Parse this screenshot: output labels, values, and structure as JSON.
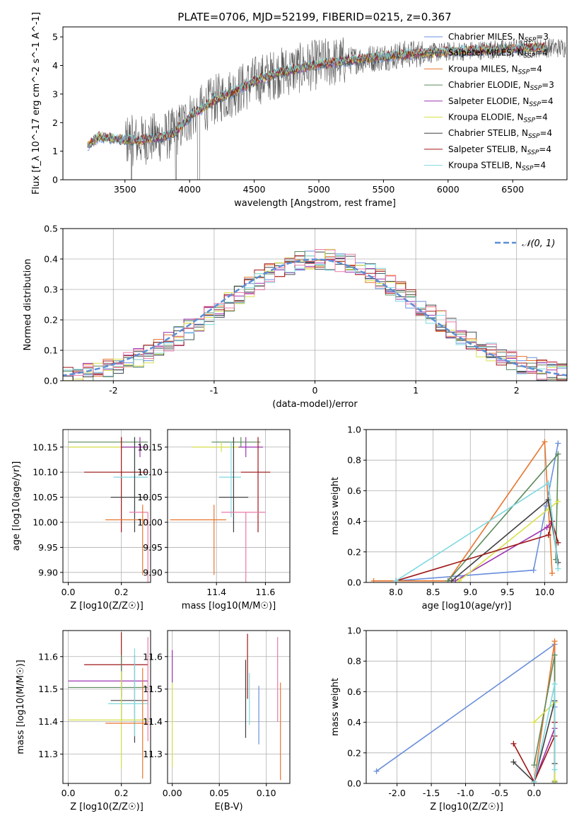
{
  "figure_title": "PLATE=0706, MJD=52199, FIBERID=0215, z=0.367",
  "colors": {
    "Chabrier MILES": "#6a8fdc",
    "Salpeter MILES": "#3f4f54",
    "Kroupa MILES": "#e8762e",
    "Chabrier ELODIE": "#5c8a5c",
    "Salpeter ELODIE": "#9b35b0",
    "Kroupa ELODIE": "#d7e04a",
    "Chabrier STELIB": "#404040",
    "Salpeter STELIB": "#a01818",
    "Kroupa STELIB": "#7fd9e0",
    "pink": "#e87aa8"
  },
  "legend_spectrum": [
    {
      "label": "Chabrier MILES, N",
      "sub": "SSP",
      "val": "=3",
      "color_key": "Chabrier MILES"
    },
    {
      "label": "Salpeter MILES, N",
      "sub": "SSP",
      "val": "=4",
      "color_key": "Salpeter MILES"
    },
    {
      "label": "Kroupa MILES, N",
      "sub": "SSP",
      "val": "=4",
      "color_key": "Kroupa MILES"
    },
    {
      "label": "Chabrier ELODIE, N",
      "sub": "SSP",
      "val": "=3",
      "color_key": "Chabrier ELODIE"
    },
    {
      "label": "Salpeter ELODIE, N",
      "sub": "SSP",
      "val": "=4",
      "color_key": "Salpeter ELODIE"
    },
    {
      "label": "Kroupa ELODIE, N",
      "sub": "SSP",
      "val": "=4",
      "color_key": "Kroupa ELODIE"
    },
    {
      "label": "Chabrier STELIB, N",
      "sub": "SSP",
      "val": "=4",
      "color_key": "Chabrier STELIB"
    },
    {
      "label": "Salpeter STELIB, N",
      "sub": "SSP",
      "val": "=4",
      "color_key": "Salpeter STELIB"
    },
    {
      "label": "Kroupa STELIB, N",
      "sub": "SSP",
      "val": "=4",
      "color_key": "Kroupa STELIB"
    }
  ],
  "legend_hist": "𝒩(0, 1)",
  "chart_data": [
    {
      "id": "spectrum",
      "type": "line",
      "xlabel": "wavelength [Angstrom, rest frame]",
      "ylabel": "Flux [f_λ 10^-17 erg cm^-2 s^-1 A^-1]",
      "xlim": [
        3020,
        6920
      ],
      "ylim": [
        0,
        5.35
      ],
      "xticks": [
        3500,
        4000,
        4500,
        5000,
        5500,
        6000,
        6500
      ],
      "yticks": [
        0,
        1,
        2,
        3,
        4,
        5
      ],
      "continuum": {
        "x": [
          3210,
          3300,
          3400,
          3500,
          3600,
          3700,
          3800,
          3900,
          4000,
          4100,
          4200,
          4300,
          4400,
          4500,
          4600,
          4700,
          4800,
          4900,
          5000,
          5100,
          5200,
          5300,
          5400,
          5500,
          5600,
          5700,
          5800,
          5900,
          6000,
          6100,
          6200,
          6300,
          6400,
          6500,
          6600,
          6700,
          6750
        ],
        "y": [
          1.2,
          1.5,
          1.45,
          1.4,
          1.35,
          1.45,
          1.5,
          1.7,
          2.2,
          2.5,
          2.8,
          3.0,
          3.2,
          3.45,
          3.6,
          3.75,
          3.85,
          3.95,
          4.05,
          4.1,
          4.15,
          4.2,
          4.25,
          4.3,
          4.35,
          4.4,
          4.42,
          4.45,
          4.48,
          4.5,
          4.52,
          4.55,
          4.56,
          4.58,
          4.6,
          4.62,
          4.62
        ]
      },
      "noise_series": "Chabrier STELIB"
    },
    {
      "id": "residuals",
      "type": "histogram",
      "xlabel": "(data-model)/error",
      "ylabel": "Normed distribution",
      "xlim": [
        -2.5,
        2.5
      ],
      "ylim": [
        0,
        0.5
      ],
      "xticks": [
        -2,
        -1,
        0,
        1,
        2
      ],
      "yticks": [
        0,
        0.1,
        0.2,
        0.3,
        0.4,
        0.5
      ],
      "bin_width": 0.1,
      "reference_curve": "gaussian"
    },
    {
      "id": "age_vs_Z",
      "type": "errorbar",
      "xlabel": "Z [log10(Z/Z☉)]",
      "ylabel": "age  [log10(age/yr)]",
      "xlim": [
        -0.02,
        0.31
      ],
      "ylim": [
        9.88,
        10.185
      ],
      "xticks": [
        0.0,
        0.2
      ],
      "yticks": [
        9.9,
        9.95,
        10.0,
        10.05,
        10.1,
        10.15
      ],
      "points": [
        {
          "series": "Chabrier ELODIE",
          "x": 0.2,
          "y": 10.16,
          "xerr": [
            0.2,
            0.1
          ],
          "yerr": [
            0.01,
            0.01
          ]
        },
        {
          "series": "Kroupa ELODIE",
          "x": 0.2,
          "y": 10.15,
          "xerr": [
            0.2,
            0.1
          ],
          "yerr": [
            0.01,
            0.01
          ]
        },
        {
          "series": "Salpeter ELODIE",
          "x": 0.27,
          "y": 10.15,
          "xerr": [
            0.07,
            0.03
          ],
          "yerr": [
            0.02,
            0.02
          ]
        },
        {
          "series": "Salpeter STELIB",
          "x": 0.2,
          "y": 10.1,
          "xerr": [
            0.14,
            0.1
          ],
          "yerr": [
            0.12,
            0.07
          ]
        },
        {
          "series": "Kroupa STELIB",
          "x": 0.25,
          "y": 10.09,
          "xerr": [
            0.08,
            0.05
          ],
          "yerr": [
            0.08,
            0.08
          ]
        },
        {
          "series": "Chabrier STELIB",
          "x": 0.25,
          "y": 10.05,
          "xerr": [
            0.09,
            0.05
          ],
          "yerr": [
            0.07,
            0.12
          ]
        },
        {
          "series": "pink",
          "x": 0.3,
          "y": 10.02,
          "xerr": [
            0.07,
            0.0
          ],
          "yerr": [
            0.15,
            0.0
          ]
        },
        {
          "series": "Kroupa MILES",
          "x": 0.28,
          "y": 10.005,
          "xerr": [
            0.14,
            0.02
          ],
          "yerr": [
            0.11,
            0.03
          ]
        }
      ]
    },
    {
      "id": "age_vs_mass",
      "type": "errorbar",
      "xlabel": "mass [log10(M/M☉)]",
      "ylabel": "",
      "xlim": [
        11.2,
        11.7
      ],
      "ylim": [
        9.88,
        10.185
      ],
      "xticks": [
        11.4,
        11.6
      ],
      "yticks": [
        9.9,
        9.95,
        10.0,
        10.05,
        10.1,
        10.15
      ],
      "points": [
        {
          "series": "Chabrier ELODIE",
          "x": 11.5,
          "y": 10.16,
          "xerr": [
            0.12,
            0.08
          ],
          "yerr": [
            0.01,
            0.01
          ]
        },
        {
          "series": "Kroupa ELODIE",
          "x": 11.42,
          "y": 10.15,
          "xerr": [
            0.12,
            0.08
          ],
          "yerr": [
            0.01,
            0.01
          ]
        },
        {
          "series": "Salpeter ELODIE",
          "x": 11.52,
          "y": 10.15,
          "xerr": [
            0.03,
            0.07
          ],
          "yerr": [
            0.02,
            0.02
          ]
        },
        {
          "series": "Salpeter STELIB",
          "x": 11.57,
          "y": 10.1,
          "xerr": [
            0.07,
            0.05
          ],
          "yerr": [
            0.12,
            0.07
          ]
        },
        {
          "series": "Kroupa STELIB",
          "x": 11.46,
          "y": 10.09,
          "xerr": [
            0.05,
            0.04
          ],
          "yerr": [
            0.08,
            0.07
          ]
        },
        {
          "series": "Chabrier STELIB",
          "x": 11.47,
          "y": 10.05,
          "xerr": [
            0.06,
            0.06
          ],
          "yerr": [
            0.07,
            0.12
          ]
        },
        {
          "series": "pink",
          "x": 11.52,
          "y": 10.02,
          "xerr": [
            0.1,
            0.08
          ],
          "yerr": [
            0.15,
            0.0
          ]
        },
        {
          "series": "Kroupa MILES",
          "x": 11.39,
          "y": 10.005,
          "xerr": [
            0.18,
            0.05
          ],
          "yerr": [
            0.11,
            0.03
          ]
        }
      ]
    },
    {
      "id": "weight_vs_age",
      "type": "line",
      "xlabel": "age  [log10(age/yr)]",
      "ylabel": "mass weight",
      "xlim": [
        7.6,
        10.3
      ],
      "ylim": [
        0,
        1.0
      ],
      "xticks": [
        8.0,
        8.5,
        9.0,
        9.5,
        10.0
      ],
      "yticks": [
        0,
        0.2,
        0.4,
        0.6,
        0.8,
        1.0
      ],
      "series": [
        {
          "name": "Chabrier MILES",
          "x": [
            8.0,
            9.85,
            10.02,
            10.18
          ],
          "y": [
            0.01,
            0.08,
            0.5,
            0.91
          ]
        },
        {
          "name": "Kroupa MILES",
          "x": [
            7.7,
            8.7,
            10.0,
            10.1
          ],
          "y": [
            0.01,
            0.01,
            0.92,
            0.06
          ]
        },
        {
          "name": "Chabrier ELODIE",
          "x": [
            8.7,
            10.18,
            10.15
          ],
          "y": [
            0.01,
            0.84,
            0.15
          ]
        },
        {
          "name": "Salpeter ELODIE",
          "x": [
            8.8,
            10.03,
            10.1
          ],
          "y": [
            0.01,
            0.36,
            0.4
          ]
        },
        {
          "name": "Kroupa ELODIE",
          "x": [
            8.85,
            10.05,
            10.18
          ],
          "y": [
            0.01,
            0.48,
            0.53
          ]
        },
        {
          "name": "Chabrier STELIB",
          "x": [
            8.75,
            10.05,
            10.18
          ],
          "y": [
            0.01,
            0.54,
            0.13
          ]
        },
        {
          "name": "Salpeter STELIB",
          "x": [
            8.0,
            10.05,
            10.1,
            10.18
          ],
          "y": [
            0.01,
            0.31,
            0.4,
            0.26
          ]
        },
        {
          "name": "Kroupa STELIB",
          "x": [
            8.0,
            10.05,
            10.18
          ],
          "y": [
            0.01,
            0.65,
            0.09
          ]
        }
      ]
    },
    {
      "id": "mass_vs_Z",
      "type": "errorbar",
      "xlabel": "Z [log10(Z/Z☉)]",
      "ylabel": "mass [log10(M/M☉)]",
      "xlim": [
        -0.02,
        0.31
      ],
      "ylim": [
        11.21,
        11.68
      ],
      "xticks": [
        0.0,
        0.2
      ],
      "yticks": [
        11.3,
        11.4,
        11.5,
        11.6
      ],
      "points": [
        {
          "series": "Salpeter STELIB",
          "x": 0.2,
          "y": 11.575,
          "xerr": [
            0.14,
            0.1
          ],
          "yerr": [
            0.1,
            0.1
          ]
        },
        {
          "series": "Salpeter ELODIE",
          "x": 0.2,
          "y": 11.525,
          "xerr": [
            0.2,
            0.1
          ],
          "yerr": [
            0.05,
            0.05
          ]
        },
        {
          "series": "Chabrier ELODIE",
          "x": 0.2,
          "y": 11.505,
          "xerr": [
            0.2,
            0.1
          ],
          "yerr": [
            0.1,
            0.1
          ]
        },
        {
          "series": "Chabrier STELIB",
          "x": 0.25,
          "y": 11.465,
          "xerr": [
            0.09,
            0.05
          ],
          "yerr": [
            0.13,
            0.14
          ]
        },
        {
          "series": "Kroupa STELIB",
          "x": 0.25,
          "y": 11.455,
          "xerr": [
            0.1,
            0.05
          ],
          "yerr": [
            0.1,
            0.17
          ]
        },
        {
          "series": "Kroupa ELODIE",
          "x": 0.2,
          "y": 11.405,
          "xerr": [
            0.2,
            0.1
          ],
          "yerr": [
            0.15,
            0.15
          ]
        },
        {
          "series": "Kroupa MILES",
          "x": 0.28,
          "y": 11.395,
          "xerr": [
            0.14,
            0.02
          ],
          "yerr": [
            0.17,
            0.17
          ]
        },
        {
          "series": "pink",
          "x": 0.3,
          "y": 11.5,
          "xerr": [
            0.0,
            0.0
          ],
          "yerr": [
            0.16,
            0.16
          ]
        }
      ]
    },
    {
      "id": "mass_vs_EBV",
      "type": "errorbar",
      "xlabel": "E(B-V)",
      "ylabel": "",
      "xlim": [
        -0.005,
        0.125
      ],
      "ylim": [
        11.21,
        11.68
      ],
      "xticks": [
        0.0,
        0.05,
        0.1
      ],
      "yticks": [
        11.3,
        11.4,
        11.5,
        11.6
      ],
      "points": [
        {
          "series": "Salpeter ELODIE",
          "x": 0.0,
          "y": 11.57,
          "xerr": [
            0,
            0
          ],
          "yerr": [
            0.05,
            0.05
          ]
        },
        {
          "series": "Kroupa ELODIE",
          "x": 0.0,
          "y": 11.39,
          "xerr": [
            0,
            0
          ],
          "yerr": [
            0.13,
            0.13
          ]
        },
        {
          "series": "Salpeter STELIB",
          "x": 0.08,
          "y": 11.57,
          "xerr": [
            0,
            0
          ],
          "yerr": [
            0.1,
            0.1
          ]
        },
        {
          "series": "Chabrier STELIB",
          "x": 0.078,
          "y": 11.47,
          "xerr": [
            0,
            0
          ],
          "yerr": [
            0.12,
            0.12
          ]
        },
        {
          "series": "Kroupa STELIB",
          "x": 0.082,
          "y": 11.47,
          "xerr": [
            0,
            0
          ],
          "yerr": [
            0.08,
            0.08
          ]
        },
        {
          "series": "Chabrier MILES",
          "x": 0.092,
          "y": 11.42,
          "xerr": [
            0,
            0
          ],
          "yerr": [
            0.09,
            0.09
          ]
        },
        {
          "series": "pink",
          "x": 0.112,
          "y": 11.53,
          "xerr": [
            0,
            0
          ],
          "yerr": [
            0.13,
            0.13
          ]
        },
        {
          "series": "Kroupa MILES",
          "x": 0.115,
          "y": 11.37,
          "xerr": [
            0,
            0
          ],
          "yerr": [
            0.15,
            0.15
          ]
        }
      ]
    },
    {
      "id": "weight_vs_Z",
      "type": "line",
      "xlabel": "Z [log10(Z/Z☉)]",
      "ylabel": "mass weight",
      "xlim": [
        -2.45,
        0.48
      ],
      "ylim": [
        0,
        1.0
      ],
      "xticks": [
        -2.0,
        -1.5,
        -1.0,
        -0.5,
        0.0
      ],
      "yticks": [
        0,
        0.2,
        0.4,
        0.6,
        0.8,
        1.0
      ],
      "series": [
        {
          "name": "Chabrier MILES",
          "x": [
            -2.3,
            0.3,
            0.3
          ],
          "y": [
            0.08,
            0.91,
            0.5
          ]
        },
        {
          "name": "Kroupa MILES",
          "x": [
            0.0,
            0.3,
            0.3
          ],
          "y": [
            0.01,
            0.93,
            0.01
          ]
        },
        {
          "name": "Chabrier ELODIE",
          "x": [
            0.0,
            0.3,
            0.3
          ],
          "y": [
            0.12,
            0.84,
            0.01
          ]
        },
        {
          "name": "Salpeter ELODIE",
          "x": [
            0.0,
            0.3,
            0.3
          ],
          "y": [
            0.01,
            0.36,
            0.4
          ]
        },
        {
          "name": "Kroupa ELODIE",
          "x": [
            0.0,
            0.3,
            0.3
          ],
          "y": [
            0.4,
            0.53,
            0.02
          ]
        },
        {
          "name": "Chabrier STELIB",
          "x": [
            -0.3,
            0.0,
            0.3,
            0.3
          ],
          "y": [
            0.14,
            0.01,
            0.54,
            0.13
          ]
        },
        {
          "name": "Salpeter STELIB",
          "x": [
            -0.3,
            0.0,
            0.3,
            0.3
          ],
          "y": [
            0.26,
            0.01,
            0.31,
            0.4
          ]
        },
        {
          "name": "Kroupa STELIB",
          "x": [
            0.0,
            0.3,
            0.3
          ],
          "y": [
            0.01,
            0.65,
            0.09
          ]
        }
      ]
    }
  ]
}
